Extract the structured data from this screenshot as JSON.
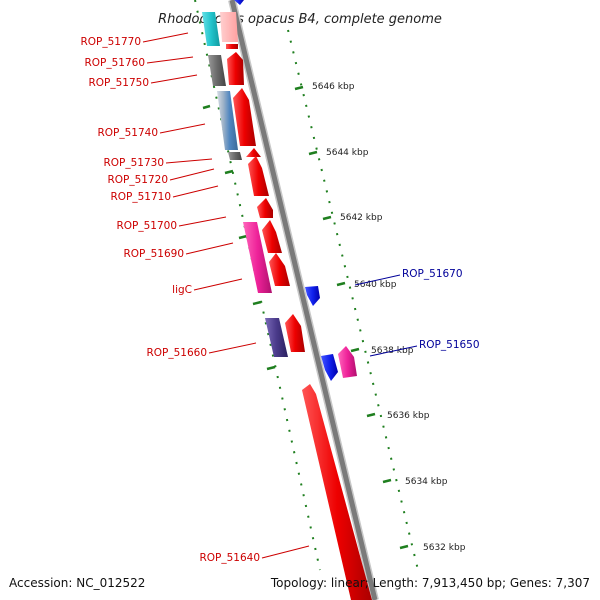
{
  "title": "Rhodococcus opacus B4, complete genome",
  "footer": {
    "accession": "Accession: NC_012522",
    "topology": "Topology: linear; Length: 7,913,450 bp; Genes: 7,307"
  },
  "colors": {
    "backbone": "#7a7a7a",
    "tick": "#1f7f1f",
    "forward_label": "#cc0000",
    "reverse_label": "#000099"
  },
  "ticks": [
    {
      "label": "5646 kbp"
    },
    {
      "label": "5644 kbp"
    },
    {
      "label": "5642 kbp"
    },
    {
      "label": "5640 kbp"
    },
    {
      "label": "5638 kbp"
    },
    {
      "label": "5636 kbp"
    },
    {
      "label": "5634 kbp"
    },
    {
      "label": "5632 kbp"
    }
  ],
  "left_labels": [
    {
      "text": "ROP_51770"
    },
    {
      "text": "ROP_51760"
    },
    {
      "text": "ROP_51750"
    },
    {
      "text": "ROP_51740"
    },
    {
      "text": "ROP_51730"
    },
    {
      "text": "ROP_51720"
    },
    {
      "text": "ROP_51710"
    },
    {
      "text": "ROP_51700"
    },
    {
      "text": "ROP_51690"
    },
    {
      "text": "ligC"
    },
    {
      "text": "ROP_51660"
    },
    {
      "text": "ROP_51640"
    }
  ],
  "right_labels": [
    {
      "text": "ROP_51670"
    },
    {
      "text": "ROP_51650"
    }
  ]
}
